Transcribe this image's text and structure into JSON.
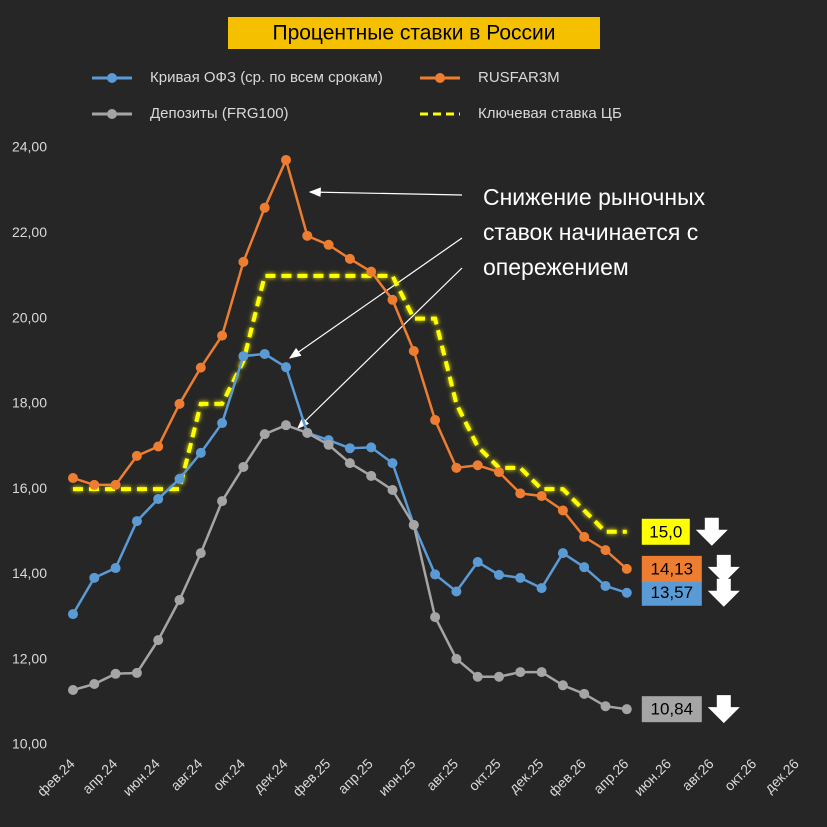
{
  "chart_data": {
    "type": "line",
    "title": "Процентные ставки в России",
    "annotation": [
      "Снижение рыночных",
      "ставок начинается с",
      "опережением"
    ],
    "categories": [
      "фев.24",
      null,
      "апр.24",
      null,
      "июн.24",
      null,
      "авг.24",
      null,
      "окт.24",
      null,
      "дек.24",
      null,
      "фев.25",
      null,
      "апр.25",
      null,
      "июн.25",
      null,
      "авг.25",
      null,
      "окт.25",
      null,
      "дек.25",
      null,
      "фев.26",
      null,
      "апр.26",
      null,
      "июн.26",
      null,
      "авг.26",
      null,
      "окт.26",
      null,
      "дек.26"
    ],
    "ylim": [
      10,
      24
    ],
    "yticks": [
      {
        "value": 10,
        "label": "10,00"
      },
      {
        "value": 12,
        "label": "12,00"
      },
      {
        "value": 14,
        "label": "14,00"
      },
      {
        "value": 16,
        "label": "16,00"
      },
      {
        "value": 18,
        "label": "18,00"
      },
      {
        "value": 20,
        "label": "20,00"
      },
      {
        "value": 22,
        "label": "22,00"
      },
      {
        "value": 24,
        "label": "24,00"
      }
    ],
    "grid": false,
    "series": [
      {
        "name": "Кривая ОФЗ (ср. по всем срокам)",
        "color": "#5b9bd5",
        "markers": true,
        "values": [
          13.07,
          13.92,
          14.15,
          15.25,
          15.77,
          16.24,
          16.85,
          17.55,
          19.12,
          19.17,
          18.86,
          17.32,
          17.15,
          16.96,
          16.98,
          16.61,
          15.16,
          14.0,
          13.6,
          14.29,
          13.99,
          13.92,
          13.68,
          14.5,
          14.17,
          13.73,
          13.57,
          null,
          null,
          null,
          null,
          null,
          null,
          null,
          null
        ],
        "value_labels": [
          null,
          null,
          null,
          null,
          null,
          null,
          null,
          null,
          null,
          null,
          null,
          null,
          null,
          null,
          null,
          null,
          null,
          null,
          null,
          null,
          null,
          null,
          null,
          null,
          null,
          null,
          "13,57",
          null,
          null,
          null,
          null,
          null,
          null,
          null,
          null
        ]
      },
      {
        "name": "RUSFAR3M",
        "color": "#ed7d31",
        "markers": true,
        "values": [
          16.26,
          16.1,
          16.1,
          16.78,
          17.0,
          18.0,
          18.85,
          19.6,
          21.33,
          22.6,
          23.72,
          21.94,
          21.73,
          21.4,
          21.1,
          20.44,
          19.24,
          17.62,
          16.5,
          16.56,
          16.4,
          15.9,
          15.84,
          15.5,
          14.88,
          14.57,
          14.13,
          null,
          null,
          null,
          null,
          null,
          null,
          null,
          null
        ],
        "value_labels": [
          null,
          null,
          null,
          null,
          null,
          null,
          null,
          null,
          null,
          null,
          null,
          null,
          null,
          null,
          null,
          null,
          null,
          null,
          null,
          null,
          null,
          null,
          null,
          null,
          null,
          null,
          "14,13",
          null,
          null,
          null,
          null,
          null,
          null,
          null,
          null
        ]
      },
      {
        "name": "Депозиты (FRG100)",
        "color": "#a5a5a5",
        "markers": true,
        "values": [
          11.29,
          11.43,
          11.67,
          11.69,
          12.46,
          13.4,
          14.5,
          15.72,
          16.52,
          17.29,
          17.5,
          17.32,
          17.04,
          16.61,
          16.31,
          15.98,
          15.16,
          13.0,
          12.02,
          11.6,
          11.6,
          11.71,
          11.71,
          11.4,
          11.2,
          10.91,
          10.84,
          null,
          null,
          null,
          null,
          null,
          null,
          null,
          null
        ],
        "value_labels": [
          null,
          null,
          null,
          null,
          null,
          null,
          null,
          null,
          null,
          null,
          null,
          null,
          null,
          null,
          null,
          null,
          null,
          null,
          null,
          null,
          null,
          null,
          null,
          null,
          null,
          null,
          "10,84",
          null,
          null,
          null,
          null,
          null,
          null,
          null,
          null
        ]
      },
      {
        "name": "Ключевая ставка ЦБ",
        "color": "#ffff00",
        "markers": false,
        "dashed": true,
        "values": [
          16,
          16,
          16,
          16,
          16,
          16,
          18,
          18,
          19,
          21,
          21,
          21,
          21,
          21,
          21,
          21,
          20,
          20,
          18,
          17,
          16.5,
          16.5,
          16,
          16,
          15.5,
          15,
          15,
          null,
          null,
          null,
          null,
          null,
          null,
          null,
          null
        ],
        "value_labels": [
          null,
          null,
          null,
          null,
          null,
          null,
          null,
          null,
          null,
          null,
          null,
          null,
          null,
          null,
          null,
          null,
          null,
          null,
          null,
          null,
          null,
          null,
          null,
          null,
          null,
          null,
          "15,0",
          null,
          null,
          null,
          null,
          null,
          null,
          null,
          null
        ]
      }
    ]
  }
}
